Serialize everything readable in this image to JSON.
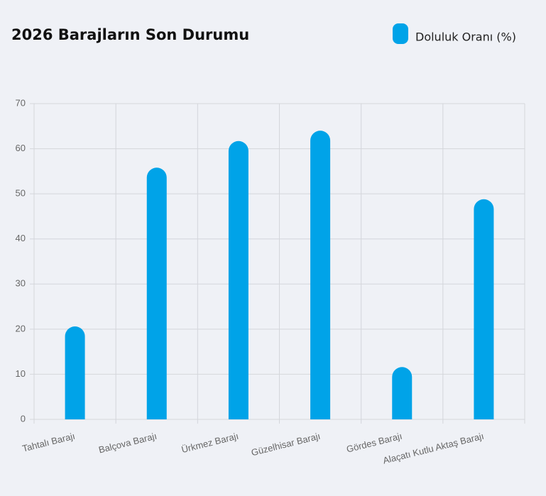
{
  "chart_data": {
    "type": "bar",
    "title": "2026 Barajların Son Durumu",
    "categories": [
      "Tahtalı Barajı",
      "Balçova Barajı",
      "Ürkmez Barajı",
      "Güzelhisar Barajı",
      "Gördes Barajı",
      "Alaçatı Kutlu Aktaş Barajı"
    ],
    "series": [
      {
        "name": "Doluluk Oranı (%)",
        "color": "#00a3e8",
        "values": [
          20.6,
          55.8,
          61.7,
          64.0,
          11.6,
          48.8
        ]
      }
    ],
    "ylim": [
      0,
      70
    ],
    "yticks": [
      0,
      10,
      20,
      30,
      40,
      50,
      60,
      70
    ],
    "grid": true,
    "legend": "top-right"
  }
}
